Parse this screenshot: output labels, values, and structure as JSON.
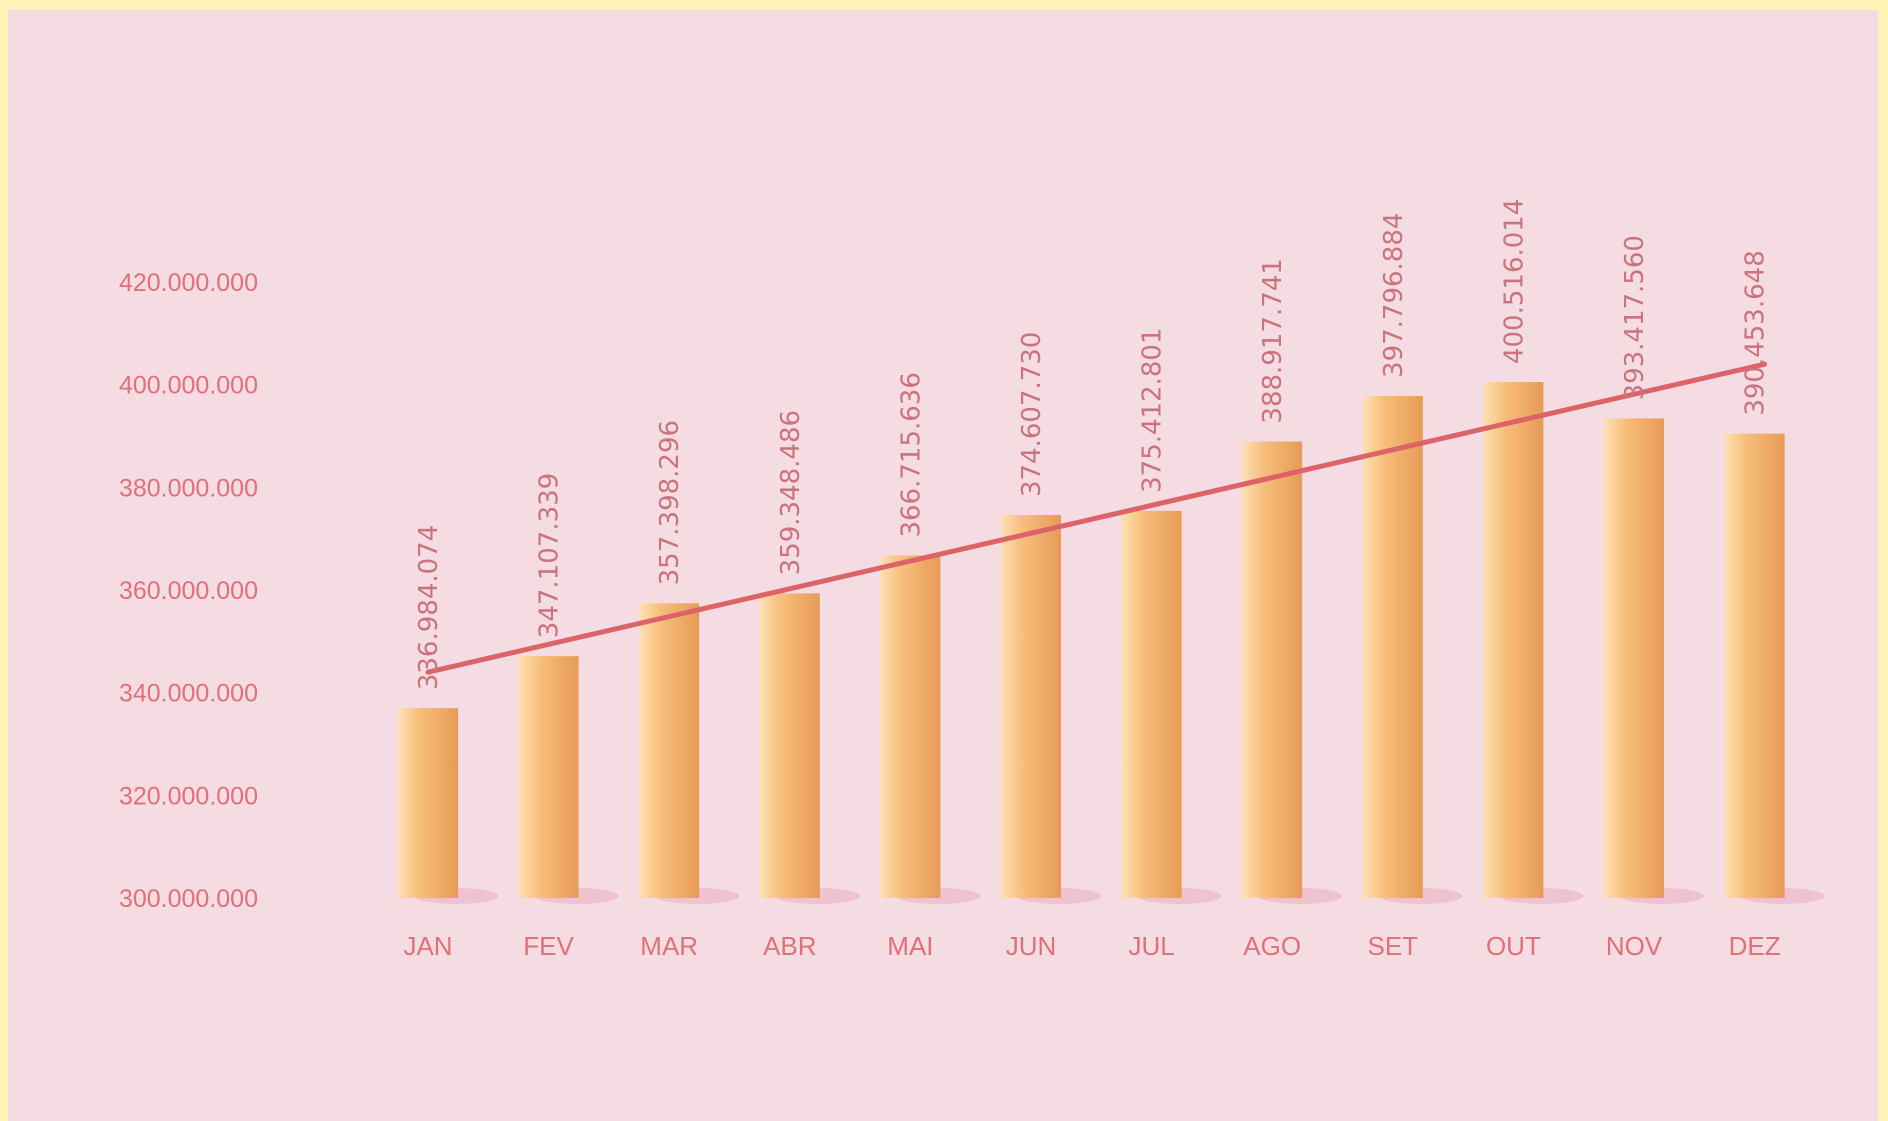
{
  "chart_data": {
    "type": "bar",
    "categories": [
      "JAN",
      "FEV",
      "MAR",
      "ABR",
      "MAI",
      "JUN",
      "JUL",
      "AGO",
      "SET",
      "OUT",
      "NOV",
      "DEZ"
    ],
    "values": [
      336984074,
      347107339,
      357398296,
      359348486,
      366715636,
      374607730,
      375412801,
      388917741,
      397796884,
      400516014,
      393417560,
      390453648
    ],
    "value_labels": [
      "336.984.074",
      "347.107.339",
      "357.398.296",
      "359.348.486",
      "366.715.636",
      "374.607.730",
      "375.412.801",
      "388.917.741",
      "397.796.884",
      "400.516.014",
      "393.417.560",
      "390.453.648"
    ],
    "y_ticks": [
      300000000,
      320000000,
      340000000,
      360000000,
      380000000,
      400000000,
      420000000
    ],
    "y_tick_labels": [
      "300.000.000",
      "320.000.000",
      "340.000.000",
      "360.000.000",
      "380.000.000",
      "400.000.000",
      "420.000.000"
    ],
    "ylim": [
      300000000,
      420000000
    ],
    "trendline": {
      "start": 344000000,
      "end": 404000000
    },
    "title": "",
    "xlabel": "",
    "ylabel": "",
    "grid": false,
    "colors": {
      "bar_light": "#fde0b4",
      "bar_mid": "#f7bf7c",
      "bar_dark": "#e79a57",
      "trend": "#dc6469",
      "labels": "#e0707a",
      "shadow": "#eebccb"
    }
  }
}
